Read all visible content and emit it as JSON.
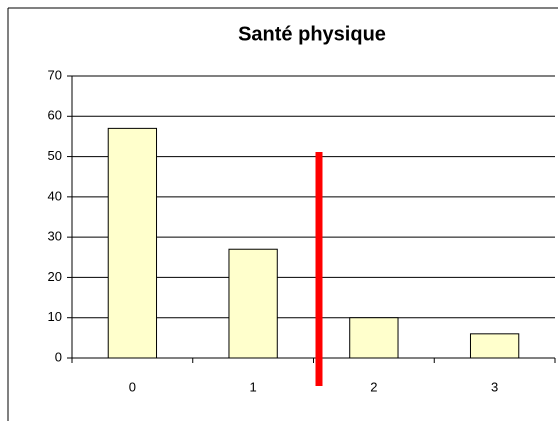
{
  "chart_data": {
    "type": "bar",
    "title": "Santé physique",
    "categories": [
      "0",
      "1",
      "2",
      "3"
    ],
    "values": [
      57,
      27,
      10,
      6
    ],
    "color": "#ffffcc",
    "ylim": [
      0,
      70
    ],
    "yticks": [
      0,
      10,
      20,
      30,
      40,
      50,
      60,
      70
    ],
    "grid": true
  }
}
